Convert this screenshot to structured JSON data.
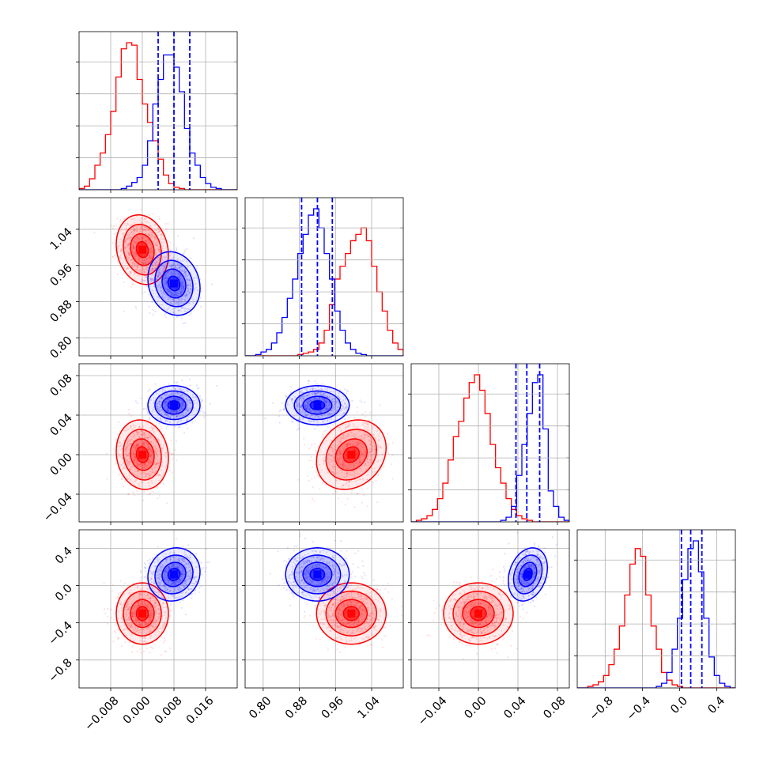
{
  "chart_data": {
    "type": "corner",
    "series": [
      {
        "name": "",
        "color": "#ff0000"
      },
      {
        "name": "",
        "color": "#0000ff"
      }
    ],
    "parameters": [
      {
        "range": [
          -0.016,
          0.024
        ],
        "ticks": [
          -0.008,
          0.0,
          0.008,
          0.016
        ],
        "tick_labels": [
          "−0.008",
          "0.000",
          "0.008",
          "0.016"
        ]
      },
      {
        "range": [
          0.76,
          1.11
        ],
        "ticks": [
          0.8,
          0.88,
          0.96,
          1.04
        ],
        "tick_labels": [
          "0.80",
          "0.88",
          "0.96",
          "1.04"
        ]
      },
      {
        "range": [
          -0.068,
          0.092
        ],
        "ticks": [
          -0.04,
          0.0,
          0.04,
          0.08
        ],
        "tick_labels": [
          "−0.04",
          "0.00",
          "0.04",
          "0.08"
        ]
      },
      {
        "range": [
          -1.1,
          0.6
        ],
        "ticks": [
          -0.8,
          -0.4,
          0.0,
          0.4
        ],
        "tick_labels": [
          "−0.8",
          "−0.4",
          "0.0",
          "0.4"
        ]
      }
    ],
    "blue_quantiles": [
      [
        0.004,
        0.008,
        0.012
      ],
      [
        0.885,
        0.92,
        0.953
      ],
      [
        0.038,
        0.049,
        0.062
      ],
      [
        0.02,
        0.12,
        0.24
      ]
    ],
    "distributions": {
      "red": {
        "mean": [
          0.0,
          0.995,
          0.0,
          -0.3
        ],
        "sd": [
          0.003,
          0.035,
          0.016,
          0.15
        ],
        "cov": {
          "0-1": -0.15,
          "0-2": -0.1,
          "0-3": 0.0,
          "1-2": 0.2,
          "1-3": 0.0,
          "2-3": 0.0
        }
      },
      "blue": {
        "mean": [
          0.008,
          0.92,
          0.05,
          0.12
        ],
        "sd": [
          0.003,
          0.032,
          0.009,
          0.13
        ],
        "cov": {
          "0-1": -0.15,
          "0-2": 0.0,
          "0-3": 0.1,
          "1-2": 0.0,
          "1-3": 0.0,
          "2-3": 0.25
        }
      }
    },
    "histograms": [
      {
        "red": [
          1,
          3,
          9,
          20,
          30,
          45,
          64,
          92,
          115,
          120,
          118,
          90,
          70,
          55,
          40,
          25,
          12,
          5,
          2,
          1,
          0,
          0,
          0,
          0,
          0,
          0,
          0,
          0,
          0,
          0
        ],
        "blue": [
          0,
          0,
          0,
          0,
          0,
          0,
          0,
          0,
          1,
          3,
          6,
          10,
          20,
          40,
          70,
          90,
          110,
          110,
          100,
          80,
          50,
          30,
          20,
          10,
          5,
          2,
          1,
          0,
          0,
          0
        ]
      },
      {
        "red": [
          0,
          0,
          0,
          0,
          0,
          0,
          0,
          0,
          0,
          0,
          1,
          2,
          3,
          5,
          10,
          20,
          40,
          60,
          70,
          80,
          90,
          95,
          100,
          90,
          70,
          50,
          35,
          20,
          10,
          5
        ],
        "blue": [
          0,
          0,
          1,
          3,
          5,
          10,
          18,
          30,
          45,
          60,
          80,
          95,
          110,
          115,
          100,
          80,
          60,
          35,
          20,
          10,
          5,
          2,
          1,
          0,
          0,
          0,
          0,
          0,
          0,
          0
        ]
      },
      {
        "red": [
          0,
          1,
          2,
          4,
          8,
          15,
          25,
          40,
          55,
          65,
          80,
          90,
          95,
          85,
          70,
          50,
          35,
          25,
          15,
          8,
          4,
          2,
          1,
          0,
          0,
          0,
          0,
          0,
          0,
          0
        ],
        "blue": [
          0,
          0,
          0,
          0,
          0,
          0,
          0,
          0,
          0,
          0,
          0,
          0,
          0,
          0,
          0,
          0,
          0,
          1,
          3,
          10,
          30,
          50,
          70,
          90,
          95,
          60,
          20,
          10,
          3,
          1
        ]
      },
      {
        "red": [
          0,
          0,
          1,
          2,
          4,
          8,
          15,
          25,
          40,
          60,
          80,
          90,
          85,
          60,
          40,
          25,
          10,
          5,
          2,
          1,
          0,
          0,
          0,
          0,
          0,
          0,
          0,
          0,
          0,
          0
        ],
        "blue": [
          0,
          0,
          0,
          0,
          0,
          0,
          0,
          0,
          0,
          0,
          0,
          0,
          0,
          0,
          0,
          1,
          3,
          10,
          25,
          45,
          70,
          90,
          95,
          75,
          45,
          20,
          8,
          3,
          1,
          0
        ]
      }
    ]
  }
}
